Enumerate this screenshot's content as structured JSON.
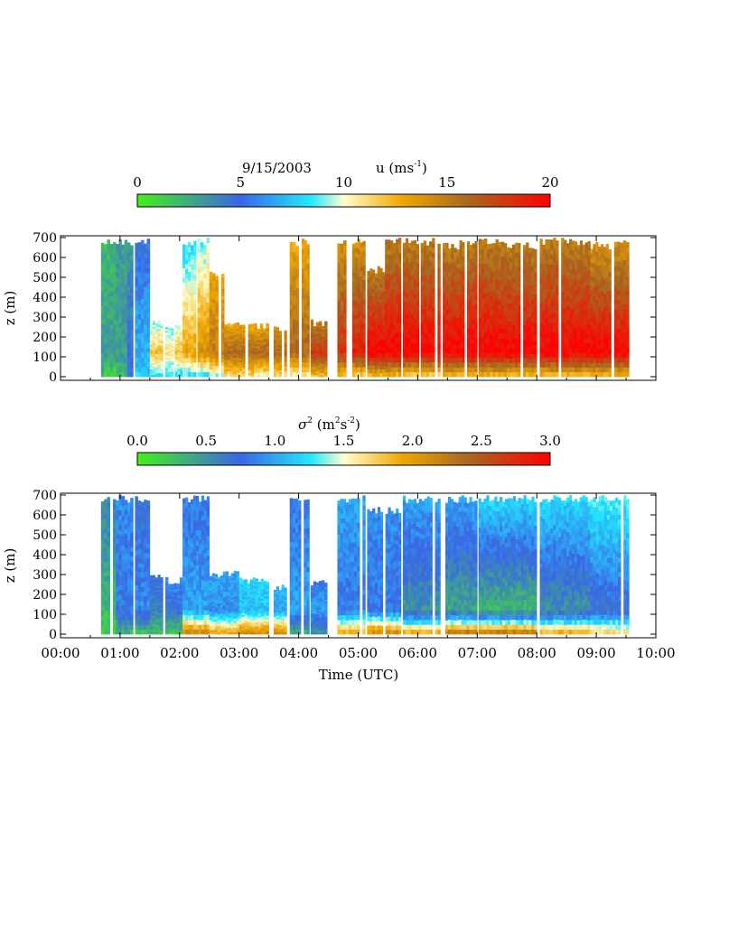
{
  "chart_data": [
    {
      "type": "heatmap",
      "variable": "u",
      "colorbar": {
        "date_label": "9/15/2003",
        "title_base": "u (ms",
        "title_sup": "-1",
        "title_end": ")",
        "range": [
          0,
          20
        ],
        "ticks": [
          "0",
          "5",
          "10",
          "15",
          "20"
        ]
      },
      "ylabel": "z (m)",
      "ylim": [
        0,
        700
      ],
      "yticks": [
        "0",
        "100",
        "200",
        "300",
        "400",
        "500",
        "600",
        "700"
      ],
      "xlim_hours": [
        0,
        10
      ],
      "xtick_labels_shown": false,
      "data_segments": [
        {
          "t": [
            0.68,
            0.73
          ],
          "top": 700,
          "v0": 2,
          "v1": 3,
          "vtop": 2
        },
        {
          "t": [
            0.73,
            0.93
          ],
          "top": 700,
          "v0": 1,
          "v1": 3,
          "vtop": 2
        },
        {
          "t": [
            0.93,
            1.12
          ],
          "top": 700,
          "v0": 2,
          "v1": 3,
          "vtop": 3
        },
        {
          "t": [
            1.12,
            1.22
          ],
          "top": 700,
          "v0": 5,
          "v1": 5,
          "vtop": 3
        },
        {
          "t": [
            1.25,
            1.5
          ],
          "top": 700,
          "v0": 8,
          "v1": 7,
          "vtop": 5
        },
        {
          "t": [
            1.5,
            1.72
          ],
          "top": 300,
          "v0": 8,
          "v1": 12,
          "vtop": 9
        },
        {
          "t": [
            1.76,
            1.9
          ],
          "top": 280,
          "v0": 8,
          "v1": 11,
          "vtop": 9
        },
        {
          "t": [
            1.92,
            2.05
          ],
          "top": 280,
          "v0": 8,
          "v1": 12,
          "vtop": 10
        },
        {
          "t": [
            2.05,
            2.28
          ],
          "top": 700,
          "v0": 8,
          "v1": 13,
          "vtop": 8
        },
        {
          "t": [
            2.3,
            2.5
          ],
          "top": 700,
          "v0": 8,
          "v1": 14,
          "vtop": 9
        },
        {
          "t": [
            2.5,
            2.75
          ],
          "top": 540,
          "v0": 9,
          "v1": 15,
          "vtop": 13
        },
        {
          "t": [
            2.75,
            3.0
          ],
          "top": 300,
          "v0": 11,
          "v1": 16,
          "vtop": 13
        },
        {
          "t": [
            3.0,
            3.25
          ],
          "top": 290,
          "v0": 11,
          "v1": 16,
          "vtop": 13
        },
        {
          "t": [
            3.25,
            3.5
          ],
          "top": 280,
          "v0": 10,
          "v1": 16,
          "vtop": 13
        },
        {
          "t": [
            3.58,
            3.8
          ],
          "top": 260,
          "v0": 11,
          "v1": 16,
          "vtop": 14
        },
        {
          "t": [
            3.85,
            4.0
          ],
          "top": 680,
          "v0": 10,
          "v1": 16,
          "vtop": 13
        },
        {
          "t": [
            4.05,
            4.18
          ],
          "top": 700,
          "v0": 10,
          "v1": 16,
          "vtop": 13
        },
        {
          "t": [
            4.2,
            4.48
          ],
          "top": 290,
          "v0": 12,
          "v1": 18,
          "vtop": 15
        },
        {
          "t": [
            4.65,
            4.85
          ],
          "top": 700,
          "v0": 12,
          "v1": 18,
          "vtop": 14
        },
        {
          "t": [
            4.9,
            5.12
          ],
          "top": 700,
          "v0": 11,
          "v1": 19,
          "vtop": 14
        },
        {
          "t": [
            5.15,
            5.45
          ],
          "top": 560,
          "v0": 12,
          "v1": 20,
          "vtop": 15
        },
        {
          "t": [
            5.45,
            5.72
          ],
          "top": 700,
          "v0": 12,
          "v1": 20,
          "vtop": 15
        },
        {
          "t": [
            5.75,
            6.02
          ],
          "top": 700,
          "v0": 11,
          "v1": 20,
          "vtop": 15
        },
        {
          "t": [
            6.05,
            6.38
          ],
          "top": 700,
          "v0": 11,
          "v1": 20,
          "vtop": 15
        },
        {
          "t": [
            6.42,
            6.7
          ],
          "top": 680,
          "v0": 12,
          "v1": 20,
          "vtop": 15
        },
        {
          "t": [
            6.7,
            7.0
          ],
          "top": 700,
          "v0": 12,
          "v1": 20,
          "vtop": 15
        },
        {
          "t": [
            7.02,
            7.45
          ],
          "top": 700,
          "v0": 12,
          "v1": 20,
          "vtop": 15
        },
        {
          "t": [
            7.45,
            8.0
          ],
          "top": 680,
          "v0": 12,
          "v1": 20,
          "vtop": 15
        },
        {
          "t": [
            8.05,
            8.5
          ],
          "top": 700,
          "v0": 12,
          "v1": 20,
          "vtop": 15
        },
        {
          "t": [
            8.5,
            8.9
          ],
          "top": 700,
          "v0": 12,
          "v1": 20,
          "vtop": 15
        },
        {
          "t": [
            8.9,
            9.25
          ],
          "top": 680,
          "v0": 12,
          "v1": 20,
          "vtop": 14
        },
        {
          "t": [
            9.3,
            9.55
          ],
          "top": 700,
          "v0": 12,
          "v1": 20,
          "vtop": 14
        }
      ]
    },
    {
      "type": "heatmap",
      "variable": "sigma^2",
      "colorbar": {
        "title_base": "σ",
        "title_sup": "2",
        "title_mid": " (m",
        "title_sup2": "2",
        "title_mid2": "s",
        "title_sup3": "-2",
        "title_end": ")",
        "range": [
          0.0,
          3.0
        ],
        "ticks": [
          "0.0",
          "0.5",
          "1.0",
          "1.5",
          "2.0",
          "2.5",
          "3.0"
        ]
      },
      "ylabel": "z (m)",
      "xlabel": "Time (UTC)",
      "ylim": [
        0,
        700
      ],
      "yticks": [
        "0",
        "100",
        "200",
        "300",
        "400",
        "500",
        "600",
        "700"
      ],
      "xlim_hours": [
        0,
        10
      ],
      "xticks": [
        "00:00",
        "01:00",
        "02:00",
        "03:00",
        "04:00",
        "05:00",
        "06:00",
        "07:00",
        "08:00",
        "09:00",
        "10:00"
      ],
      "data_segments": [
        {
          "t": [
            0.68,
            0.93
          ],
          "top": 700,
          "v0": 0.2,
          "v1": 0.3,
          "vtop": 0.6
        },
        {
          "t": [
            0.93,
            1.22
          ],
          "top": 700,
          "v0": 0.3,
          "v1": 0.8,
          "vtop": 0.9
        },
        {
          "t": [
            1.25,
            1.5
          ],
          "top": 700,
          "v0": 0.2,
          "v1": 0.9,
          "vtop": 0.7
        },
        {
          "t": [
            1.5,
            1.72
          ],
          "top": 300,
          "v0": 0.3,
          "v1": 0.6,
          "vtop": 0.8
        },
        {
          "t": [
            1.76,
            2.05
          ],
          "top": 290,
          "v0": 0.2,
          "v1": 0.7,
          "vtop": 0.9
        },
        {
          "t": [
            2.05,
            2.5
          ],
          "top": 700,
          "v0": 2.2,
          "v1": 1.0,
          "vtop": 0.8
        },
        {
          "t": [
            2.5,
            3.0
          ],
          "top": 320,
          "v0": 2.0,
          "v1": 0.9,
          "vtop": 1.0
        },
        {
          "t": [
            3.0,
            3.5
          ],
          "top": 290,
          "v0": 2.2,
          "v1": 1.1,
          "vtop": 1.2
        },
        {
          "t": [
            3.58,
            3.8
          ],
          "top": 250,
          "v0": 2.2,
          "v1": 1.0,
          "vtop": 1.1
        },
        {
          "t": [
            3.85,
            4.18
          ],
          "top": 700,
          "v0": 0.3,
          "v1": 1.0,
          "vtop": 0.8
        },
        {
          "t": [
            4.2,
            4.48
          ],
          "top": 280,
          "v0": 0.5,
          "v1": 1.0,
          "vtop": 0.8
        },
        {
          "t": [
            4.65,
            5.12
          ],
          "top": 700,
          "v0": 2.0,
          "v1": 0.8,
          "vtop": 1.0
        },
        {
          "t": [
            5.15,
            5.72
          ],
          "top": 640,
          "v0": 2.2,
          "v1": 0.8,
          "vtop": 0.9
        },
        {
          "t": [
            5.75,
            6.38
          ],
          "top": 700,
          "v0": 2.0,
          "v1": 0.5,
          "vtop": 1.0
        },
        {
          "t": [
            6.42,
            7.0
          ],
          "top": 700,
          "v0": 2.4,
          "v1": 0.4,
          "vtop": 1.0
        },
        {
          "t": [
            7.02,
            8.0
          ],
          "top": 700,
          "v0": 2.4,
          "v1": 0.3,
          "vtop": 1.2
        },
        {
          "t": [
            8.05,
            8.9
          ],
          "top": 700,
          "v0": 2.0,
          "v1": 0.5,
          "vtop": 1.2
        },
        {
          "t": [
            8.9,
            9.55
          ],
          "top": 700,
          "v0": 1.8,
          "v1": 0.7,
          "vtop": 1.3
        }
      ]
    }
  ]
}
